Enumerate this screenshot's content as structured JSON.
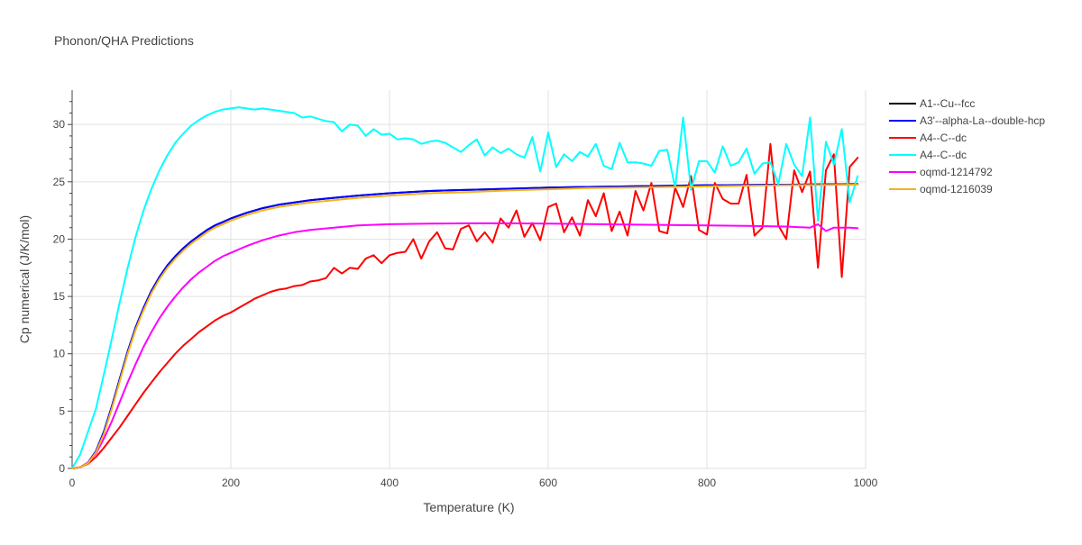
{
  "chart_data": {
    "type": "line",
    "title": "Phonon/QHA Predictions",
    "xlabel": "Temperature (K)",
    "ylabel": "Cp numerical (J/K/mol)",
    "xlim": [
      0,
      1000
    ],
    "ylim": [
      0,
      33
    ],
    "x_ticks": [
      0,
      200,
      400,
      600,
      800,
      1000
    ],
    "y_ticks": [
      0,
      5,
      10,
      15,
      20,
      25,
      30
    ],
    "grid": true,
    "legend_position": "right",
    "series": [
      {
        "name": "A1--Cu--fcc",
        "color": "#000000",
        "x": [
          0,
          10,
          20,
          30,
          40,
          50,
          60,
          70,
          80,
          90,
          100,
          110,
          120,
          130,
          140,
          150,
          160,
          170,
          180,
          190,
          200,
          220,
          240,
          260,
          280,
          300,
          330,
          360,
          400,
          450,
          500,
          550,
          600,
          650,
          700,
          750,
          800,
          850,
          900,
          950,
          990
        ],
        "y": [
          0,
          0.1,
          0.5,
          1.5,
          3.2,
          5.4,
          7.8,
          10.2,
          12.3,
          14.0,
          15.5,
          16.7,
          17.7,
          18.5,
          19.2,
          19.8,
          20.3,
          20.8,
          21.2,
          21.5,
          21.8,
          22.3,
          22.7,
          23.0,
          23.2,
          23.4,
          23.6,
          23.8,
          24.0,
          24.2,
          24.3,
          24.4,
          24.5,
          24.55,
          24.6,
          24.65,
          24.7,
          24.72,
          24.75,
          24.78,
          24.8
        ]
      },
      {
        "name": "A3'--alpha-La--double-hcp",
        "color": "#0000ff",
        "x": [
          0,
          10,
          20,
          30,
          40,
          50,
          60,
          70,
          80,
          90,
          100,
          110,
          120,
          130,
          140,
          150,
          160,
          170,
          180,
          190,
          200,
          220,
          240,
          260,
          280,
          300,
          330,
          360,
          400,
          450,
          500,
          550,
          600,
          650,
          700,
          750,
          800,
          850,
          900,
          950,
          990
        ],
        "y": [
          0,
          0.1,
          0.5,
          1.5,
          3.2,
          5.4,
          7.8,
          10.2,
          12.3,
          14.0,
          15.5,
          16.7,
          17.7,
          18.5,
          19.2,
          19.8,
          20.3,
          20.8,
          21.2,
          21.5,
          21.8,
          22.3,
          22.7,
          23.0,
          23.2,
          23.4,
          23.6,
          23.8,
          24.0,
          24.2,
          24.3,
          24.4,
          24.5,
          24.55,
          24.6,
          24.65,
          24.7,
          24.72,
          24.75,
          24.78,
          24.8
        ]
      },
      {
        "name": "A4--C--dc",
        "color": "#ff0000",
        "x": [
          0,
          10,
          20,
          30,
          40,
          50,
          60,
          70,
          80,
          90,
          100,
          110,
          120,
          130,
          140,
          150,
          160,
          170,
          180,
          190,
          200,
          210,
          220,
          230,
          240,
          250,
          260,
          270,
          280,
          290,
          300,
          310,
          320,
          330,
          340,
          350,
          360,
          370,
          380,
          390,
          400,
          410,
          420,
          430,
          440,
          450,
          460,
          470,
          480,
          490,
          500,
          510,
          520,
          530,
          540,
          550,
          560,
          570,
          580,
          590,
          600,
          610,
          620,
          630,
          640,
          650,
          660,
          670,
          680,
          690,
          700,
          710,
          720,
          730,
          740,
          750,
          760,
          770,
          780,
          790,
          800,
          810,
          820,
          830,
          840,
          850,
          860,
          870,
          880,
          890,
          900,
          910,
          920,
          930,
          940,
          950,
          960,
          970,
          980,
          990
        ],
        "y": [
          0,
          0.1,
          0.4,
          1.0,
          1.8,
          2.7,
          3.6,
          4.6,
          5.6,
          6.6,
          7.5,
          8.4,
          9.2,
          10.0,
          10.7,
          11.3,
          11.9,
          12.4,
          12.9,
          13.3,
          13.6,
          14.0,
          14.4,
          14.8,
          15.1,
          15.4,
          15.6,
          15.7,
          15.9,
          16.0,
          16.3,
          16.4,
          16.6,
          17.5,
          17.0,
          17.5,
          17.4,
          18.3,
          18.6,
          17.9,
          18.6,
          18.8,
          18.9,
          20.0,
          18.3,
          19.8,
          20.6,
          19.2,
          19.1,
          20.9,
          21.2,
          19.8,
          20.6,
          19.7,
          21.8,
          21.0,
          22.5,
          20.2,
          21.4,
          19.9,
          22.8,
          23.1,
          20.6,
          21.9,
          20.3,
          23.4,
          22.0,
          24.0,
          20.7,
          22.4,
          20.3,
          24.2,
          22.5,
          24.9,
          20.7,
          20.5,
          24.5,
          22.8,
          25.5,
          20.8,
          20.4,
          24.9,
          23.5,
          23.1,
          23.1,
          25.6,
          20.3,
          21.0,
          28.3,
          21.2,
          20.0,
          26.0,
          24.1,
          25.9,
          17.5,
          26.0,
          27.4,
          16.7,
          26.3,
          27.1
        ]
      },
      {
        "name": "A4--C--dc",
        "color": "#00ffff",
        "x": [
          0,
          10,
          20,
          30,
          40,
          50,
          60,
          70,
          80,
          90,
          100,
          110,
          120,
          130,
          140,
          150,
          160,
          170,
          180,
          190,
          200,
          210,
          220,
          230,
          240,
          250,
          260,
          270,
          280,
          290,
          300,
          310,
          320,
          330,
          340,
          350,
          360,
          370,
          380,
          390,
          400,
          410,
          420,
          430,
          440,
          450,
          460,
          470,
          480,
          490,
          500,
          510,
          520,
          530,
          540,
          550,
          560,
          570,
          580,
          590,
          600,
          610,
          620,
          630,
          640,
          650,
          660,
          670,
          680,
          690,
          700,
          710,
          720,
          730,
          740,
          750,
          760,
          770,
          780,
          790,
          800,
          810,
          820,
          830,
          840,
          850,
          860,
          870,
          880,
          890,
          900,
          910,
          920,
          930,
          940,
          950,
          960,
          970,
          980,
          990
        ],
        "y": [
          0,
          1.2,
          3.2,
          5.2,
          8.2,
          11.3,
          14.5,
          17.5,
          20.2,
          22.5,
          24.4,
          26.0,
          27.3,
          28.4,
          29.2,
          29.9,
          30.4,
          30.8,
          31.1,
          31.3,
          31.4,
          31.5,
          31.4,
          31.3,
          31.4,
          31.3,
          31.2,
          31.1,
          31.0,
          30.6,
          30.7,
          30.5,
          30.3,
          30.2,
          29.4,
          30.0,
          29.9,
          29.0,
          29.6,
          29.1,
          29.2,
          28.7,
          28.8,
          28.7,
          28.3,
          28.5,
          28.6,
          28.4,
          28.0,
          27.6,
          28.2,
          28.7,
          27.3,
          28.0,
          27.5,
          27.9,
          27.4,
          27.1,
          28.9,
          25.9,
          29.3,
          26.3,
          27.4,
          26.8,
          27.6,
          27.2,
          28.3,
          26.4,
          26.1,
          28.4,
          26.7,
          26.7,
          26.6,
          26.4,
          27.7,
          27.8,
          24.5,
          30.6,
          24.3,
          26.8,
          26.8,
          25.8,
          28.1,
          26.4,
          26.7,
          27.9,
          25.7,
          26.6,
          26.7,
          24.8,
          28.3,
          26.5,
          25.5,
          30.6,
          21.6,
          28.5,
          26.5,
          29.6,
          23.2,
          25.5
        ]
      },
      {
        "name": "oqmd-1214792",
        "color": "#ff00ff",
        "x": [
          0,
          10,
          20,
          30,
          40,
          50,
          60,
          70,
          80,
          90,
          100,
          110,
          120,
          130,
          140,
          150,
          160,
          170,
          180,
          190,
          200,
          220,
          240,
          260,
          280,
          300,
          330,
          360,
          400,
          450,
          500,
          550,
          600,
          650,
          700,
          750,
          800,
          850,
          900,
          930,
          940,
          950,
          960,
          970,
          980,
          990
        ],
        "y": [
          0,
          0.1,
          0.5,
          1.3,
          2.6,
          4.1,
          5.8,
          7.5,
          9.1,
          10.6,
          11.9,
          13.1,
          14.1,
          15.0,
          15.8,
          16.5,
          17.1,
          17.6,
          18.1,
          18.5,
          18.8,
          19.4,
          19.9,
          20.3,
          20.6,
          20.8,
          21.0,
          21.2,
          21.3,
          21.35,
          21.38,
          21.38,
          21.35,
          21.32,
          21.28,
          21.24,
          21.2,
          21.15,
          21.1,
          21.0,
          21.3,
          20.7,
          21.0,
          21.0,
          21.0,
          20.95
        ]
      },
      {
        "name": "oqmd-1216039",
        "color": "#f2b21f",
        "x": [
          0,
          10,
          20,
          30,
          40,
          50,
          60,
          70,
          80,
          90,
          100,
          110,
          120,
          130,
          140,
          150,
          160,
          170,
          180,
          190,
          200,
          220,
          240,
          260,
          280,
          300,
          330,
          360,
          400,
          450,
          500,
          550,
          600,
          650,
          700,
          750,
          800,
          850,
          900,
          950,
          990
        ],
        "y": [
          0,
          0.1,
          0.45,
          1.4,
          3.0,
          5.2,
          7.6,
          10.0,
          12.1,
          13.8,
          15.3,
          16.5,
          17.5,
          18.3,
          19.0,
          19.6,
          20.1,
          20.6,
          21.0,
          21.3,
          21.6,
          22.1,
          22.5,
          22.8,
          23.0,
          23.2,
          23.4,
          23.6,
          23.8,
          24.0,
          24.1,
          24.25,
          24.35,
          24.45,
          24.5,
          24.55,
          24.6,
          24.65,
          24.7,
          24.72,
          24.75
        ]
      }
    ]
  }
}
